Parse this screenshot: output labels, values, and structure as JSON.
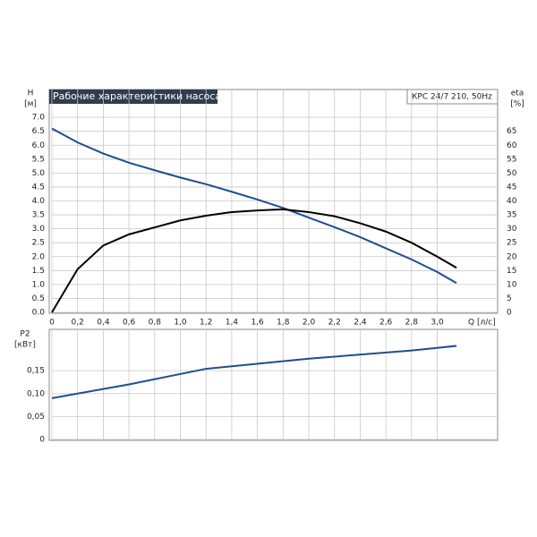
{
  "chart_data": [
    {
      "type": "line",
      "title": "Рабочие характеристики насоса",
      "model": "КРС 24/7 210, 50Hz",
      "ylabel": "H",
      "yunit": "[м]",
      "y2label": "eta",
      "y2unit": "[%]",
      "xlabel": "Q [л/с]",
      "x": [
        0,
        0.2,
        0.4,
        0.6,
        0.8,
        1.0,
        1.2,
        1.4,
        1.6,
        1.8,
        2.0,
        2.2,
        2.4,
        2.6,
        2.8,
        3.0,
        3.15
      ],
      "series": [
        {
          "color": "#1f4e8c",
          "values": [
            6.6,
            6.1,
            5.7,
            5.37,
            5.1,
            4.84,
            4.6,
            4.33,
            4.05,
            3.75,
            3.4,
            3.06,
            2.7,
            2.3,
            1.9,
            1.45,
            1.05
          ]
        },
        {
          "color": "#000000",
          "axis": "y2",
          "values": [
            0,
            15.5,
            24,
            28,
            30.5,
            33,
            34.7,
            36,
            36.6,
            37,
            36,
            34.5,
            32,
            29,
            25,
            20,
            16
          ]
        }
      ],
      "xlim": [
        0,
        3.47
      ],
      "xticks": [
        0,
        {
          "value": 0.2,
          "label": "0,2"
        },
        {
          "value": 0.4,
          "label": "0,4"
        },
        {
          "value": 0.6,
          "label": "0,6"
        },
        {
          "value": 0.8,
          "label": "0,8"
        },
        {
          "value": 1.0,
          "label": "1,0"
        },
        {
          "value": 1.2,
          "label": "1,2"
        },
        {
          "value": 1.4,
          "label": "1,4"
        },
        {
          "value": 1.6,
          "label": "1,6"
        },
        {
          "value": 1.8,
          "label": "1,8"
        },
        {
          "value": 2.0,
          "label": "2,0"
        },
        {
          "value": 2.2,
          "label": "2,2"
        },
        {
          "value": 2.4,
          "label": "2,4"
        },
        {
          "value": 2.6,
          "label": "2,6"
        },
        {
          "value": 2.8,
          "label": "2,8"
        },
        {
          "value": 3.0,
          "label": "3,0"
        }
      ],
      "ylim": [
        0,
        8
      ],
      "yticks": [
        {
          "value": 0,
          "label": "0.0"
        },
        {
          "value": 0.5,
          "label": "0.5"
        },
        {
          "value": 1,
          "label": "1.0"
        },
        {
          "value": 1.5,
          "label": "1.5"
        },
        {
          "value": 2,
          "label": "2.0"
        },
        {
          "value": 2.5,
          "label": "2.5"
        },
        {
          "value": 3,
          "label": "3.0"
        },
        {
          "value": 3.5,
          "label": "3.5"
        },
        {
          "value": 4,
          "label": "4.0"
        },
        {
          "value": 4.5,
          "label": "4.5"
        },
        {
          "value": 5,
          "label": "5.0"
        },
        {
          "value": 5.5,
          "label": "5.5"
        },
        {
          "value": 6,
          "label": "6.0"
        },
        {
          "value": 6.5,
          "label": "6.5"
        },
        {
          "value": 7,
          "label": "7.0"
        }
      ],
      "y2lim": [
        0,
        80
      ],
      "y2ticks": [
        0,
        5,
        10,
        15,
        20,
        25,
        30,
        35,
        40,
        45,
        50,
        55,
        60,
        65
      ],
      "grid": true
    },
    {
      "type": "line",
      "ylabel": "P2",
      "yunit": "[кВт]",
      "x": [
        0,
        0.6,
        1.2,
        2.0,
        2.8,
        3.15
      ],
      "series": [
        {
          "color": "#1f4e8c",
          "values": [
            0.09,
            0.12,
            0.154,
            0.176,
            0.194,
            0.204
          ]
        }
      ],
      "xlim": [
        0,
        3.47
      ],
      "ylim": [
        0,
        0.24
      ],
      "yticks": [
        0,
        {
          "value": 0.05,
          "label": "0,05"
        },
        {
          "value": 0.1,
          "label": "0,10"
        },
        {
          "value": 0.15,
          "label": "0,15"
        }
      ],
      "grid": true
    }
  ]
}
